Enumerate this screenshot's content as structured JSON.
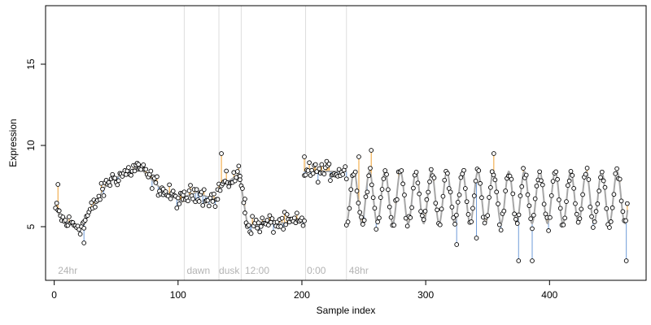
{
  "chart_data": {
    "type": "scatter",
    "title": "",
    "xlabel": "Sample index",
    "ylabel": "Expression",
    "xlim": [
      -7,
      478
    ],
    "ylim": [
      1.7,
      18.6
    ],
    "x_ticks": [
      0,
      100,
      200,
      300,
      400
    ],
    "y_ticks": [
      5,
      10,
      15
    ],
    "grid": false,
    "legend": "none",
    "colors": {
      "points_stroke": "#000000",
      "points_fill": "#ffffff",
      "fit_line": "#a6a6a6",
      "residual_positive": "#f0a030",
      "residual_negative": "#6e9bd8",
      "separators": "#dddddd",
      "annotation_text": "#b3b3b3"
    },
    "separators": [
      105,
      133,
      151,
      203,
      236
    ],
    "annotations": [
      {
        "label": "24hr",
        "x": 3
      },
      {
        "label": "dawn",
        "x": 107
      },
      {
        "label": "dusk",
        "x": 133
      },
      {
        "label": "12:00",
        "x": 154
      },
      {
        "label": "0:00",
        "x": 204
      },
      {
        "label": "48hr",
        "x": 238
      }
    ],
    "segments": [
      {
        "x0": 1,
        "x1": 8,
        "fit0": 6.1,
        "fit1": 5.3
      },
      {
        "x0": 8,
        "x1": 24,
        "fit0": 5.3,
        "fit1": 5.0
      },
      {
        "x0": 24,
        "x1": 44,
        "fit0": 5.3,
        "fit1": 7.8
      },
      {
        "x0": 44,
        "x1": 68,
        "fit0": 7.8,
        "fit1": 8.7
      },
      {
        "x0": 68,
        "x1": 88,
        "fit0": 8.7,
        "fit1": 7.2
      },
      {
        "x0": 88,
        "x1": 104,
        "fit0": 7.2,
        "fit1": 6.5
      },
      {
        "x0": 104,
        "x1": 118,
        "fit0": 6.8,
        "fit1": 7.2
      },
      {
        "x0": 118,
        "x1": 132,
        "fit0": 7.0,
        "fit1": 6.6
      },
      {
        "x0": 132,
        "x1": 150,
        "fit0": 7.3,
        "fit1": 8.3
      },
      {
        "x0": 150,
        "x1": 156,
        "fit0": 8.0,
        "fit1": 5.1
      },
      {
        "x0": 156,
        "x1": 202,
        "fit0": 5.1,
        "fit1": 5.3
      },
      {
        "x0": 202,
        "x1": 236,
        "fit0": 8.4,
        "fit1": 8.4
      }
    ],
    "osc": {
      "x_start": 236,
      "x_end": 463,
      "period": 12.5,
      "phase": 239,
      "mean": 6.8,
      "amplitude": 1.6,
      "step": 1.2,
      "spikes": [
        {
          "x": 375,
          "y": 2.9
        },
        {
          "x": 386,
          "y": 2.9
        },
        {
          "x": 462,
          "y": 2.9
        },
        {
          "x": 325,
          "y": 3.9
        },
        {
          "x": 341,
          "y": 4.3
        },
        {
          "x": 256,
          "y": 9.7
        },
        {
          "x": 355,
          "y": 9.5
        },
        {
          "x": 246,
          "y": 9.3
        }
      ]
    },
    "points_special": [
      {
        "x": 3,
        "y": 7.6
      },
      {
        "x": 24,
        "y": 4.0
      },
      {
        "x": 135,
        "y": 9.5
      },
      {
        "x": 154,
        "y": 6.7
      },
      {
        "x": 202,
        "y": 9.3
      }
    ]
  }
}
